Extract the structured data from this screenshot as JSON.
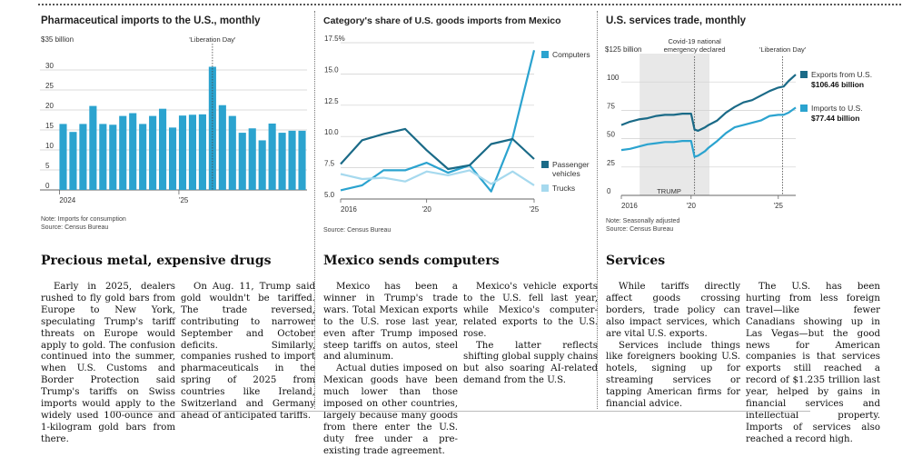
{
  "charts": {
    "pharma": {
      "title": "Pharmaceutical imports to the U.S., monthly",
      "note1": "Note: Imports for consumption",
      "note2": "Source: Census Bureau"
    },
    "mexico": {
      "title": "Category's share of U.S. goods imports from Mexico",
      "note1": "Source: Census Bureau"
    },
    "services": {
      "title": "U.S. services trade, monthly",
      "note1": "Note: Seasonally adjusted",
      "note2": "Source: Census Bureau"
    }
  },
  "chart_data": [
    {
      "type": "bar",
      "title": "Pharmaceutical imports to the U.S., monthly",
      "ylabel": "$35 billion",
      "ylim": [
        0,
        35
      ],
      "yticks": [
        0,
        5,
        10,
        15,
        20,
        25,
        30
      ],
      "ytick_labels": [
        "0",
        "5",
        "10",
        "15",
        "20",
        "25",
        "30"
      ],
      "x_tick_labels": [
        {
          "label": "2024",
          "index": 0
        },
        {
          "label": "'25",
          "index": 12
        }
      ],
      "annotation": {
        "label": "'Liberation Day'",
        "index": 15.5
      },
      "categories": [
        "Jan 2024",
        "Feb 2024",
        "Mar 2024",
        "Apr 2024",
        "May 2024",
        "Jun 2024",
        "Jul 2024",
        "Aug 2024",
        "Sep 2024",
        "Oct 2024",
        "Nov 2024",
        "Dec 2024",
        "Jan 2025",
        "Feb 2025",
        "Mar 2025",
        "Apr 2025",
        "May 2025",
        "Jun 2025",
        "Jul 2025",
        "Aug 2025",
        "Sep 2025",
        "Oct 2025",
        "Nov 2025",
        "Dec 2025",
        "Jan 2026"
      ],
      "values": [
        16.5,
        14.5,
        16.5,
        21,
        16.5,
        16.3,
        18.5,
        19.2,
        16.5,
        18.5,
        20.3,
        15.6,
        18.6,
        18.8,
        18.9,
        30.8,
        21.2,
        18.5,
        14.3,
        15.4,
        12.4,
        16.6,
        14.3,
        14.8,
        14.8
      ],
      "color": "#2ba3cf"
    },
    {
      "type": "line",
      "title": "Category's share of U.S. goods imports from Mexico",
      "ylabel": "17.5%",
      "ylim": [
        5.0,
        17.5
      ],
      "yticks": [
        5.0,
        7.5,
        10.0,
        12.5,
        15.0,
        17.5
      ],
      "ytick_labels": [
        "5.0",
        "7.5",
        "10.0",
        "12.5",
        "15.0",
        "17.5%"
      ],
      "x": [
        2016,
        2017,
        2018,
        2019,
        2020,
        2021,
        2022,
        2023,
        2024,
        2025
      ],
      "x_tick_labels": [
        {
          "label": "2016",
          "x": 2016
        },
        {
          "label": "'20",
          "x": 2020
        },
        {
          "label": "'25",
          "x": 2025
        }
      ],
      "series": [
        {
          "name": "Computers",
          "values": [
            5.7,
            6.1,
            7.3,
            7.3,
            7.9,
            7.1,
            7.7,
            5.6,
            9.9,
            16.9
          ],
          "color": "#2ba3cf"
        },
        {
          "name": "Passenger vehicles",
          "values": [
            7.8,
            9.7,
            10.2,
            10.6,
            8.9,
            7.4,
            7.7,
            9.4,
            9.8,
            8.2
          ],
          "color": "#1a6a87"
        },
        {
          "name": "Trucks",
          "values": [
            7.0,
            6.6,
            6.7,
            6.4,
            7.2,
            6.9,
            7.3,
            6.2,
            7.2,
            6.1
          ],
          "color": "#a6d9ee"
        }
      ],
      "legend_labels": [
        "Computers",
        "Passenger vehicles",
        "Trucks"
      ]
    },
    {
      "type": "line",
      "title": "U.S. services trade, monthly",
      "ylabel": "$125 billion",
      "ylim": [
        0,
        125
      ],
      "yticks": [
        0,
        25,
        50,
        75,
        100
      ],
      "ytick_labels": [
        "0",
        "25",
        "50",
        "75",
        "100"
      ],
      "xlim": [
        2016.0,
        2026.0
      ],
      "x_tick_labels": [
        {
          "label": "2016",
          "x": 2016
        },
        {
          "label": "'20",
          "x": 2020
        },
        {
          "label": "'25",
          "x": 2025
        }
      ],
      "shaded_period": {
        "label": "TRUMP",
        "from": 2017.05,
        "to": 2021.05
      },
      "annotations": [
        {
          "label": "Covid-19 national emergency declared",
          "x": 2020.2
        },
        {
          "label": "'Liberation Day'",
          "x": 2025.25
        }
      ],
      "series": [
        {
          "name": "Exports from U.S.",
          "value_label": "$106.46 billion",
          "color": "#1a6a87",
          "points": [
            [
              2016.0,
              62
            ],
            [
              2016.5,
              65
            ],
            [
              2017.0,
              67
            ],
            [
              2017.5,
              68
            ],
            [
              2018.0,
              70
            ],
            [
              2018.5,
              71
            ],
            [
              2019.0,
              71
            ],
            [
              2019.5,
              72
            ],
            [
              2020.0,
              72
            ],
            [
              2020.2,
              58
            ],
            [
              2020.4,
              57
            ],
            [
              2020.8,
              60
            ],
            [
              2021.0,
              62
            ],
            [
              2021.5,
              66
            ],
            [
              2022.0,
              73
            ],
            [
              2022.5,
              78
            ],
            [
              2023.0,
              82
            ],
            [
              2023.5,
              84
            ],
            [
              2024.0,
              88
            ],
            [
              2024.5,
              92
            ],
            [
              2025.0,
              95
            ],
            [
              2025.3,
              96
            ],
            [
              2025.6,
              101
            ],
            [
              2026.0,
              106.46
            ]
          ]
        },
        {
          "name": "Imports to U.S.",
          "value_label": "$77.44 billion",
          "color": "#2ba3cf",
          "points": [
            [
              2016.0,
              40
            ],
            [
              2016.5,
              41
            ],
            [
              2017.0,
              43
            ],
            [
              2017.5,
              45
            ],
            [
              2018.0,
              46
            ],
            [
              2018.5,
              47
            ],
            [
              2019.0,
              47
            ],
            [
              2019.5,
              48
            ],
            [
              2020.0,
              48
            ],
            [
              2020.2,
              34
            ],
            [
              2020.4,
              35
            ],
            [
              2020.8,
              39
            ],
            [
              2021.0,
              42
            ],
            [
              2021.5,
              48
            ],
            [
              2022.0,
              55
            ],
            [
              2022.5,
              60
            ],
            [
              2023.0,
              62
            ],
            [
              2023.5,
              64
            ],
            [
              2024.0,
              66
            ],
            [
              2024.5,
              70
            ],
            [
              2025.0,
              71
            ],
            [
              2025.3,
              71
            ],
            [
              2025.6,
              73
            ],
            [
              2026.0,
              77.44
            ]
          ]
        }
      ]
    }
  ],
  "articles": {
    "pharma": {
      "headline": "Precious metal, expensive drugs",
      "p1": "Early in 2025, dealers rushed to fly gold bars from Europe to New York, speculating Trump's tariff threats on Europe would apply to gold. The confusion continued into the summer, when U.S. Customs and Border Protection said Trump's tariffs on Swiss imports would apply to the widely used 100-ounce and 1-kilogram gold bars from there.",
      "p2": "On Aug. 11, Trump said gold wouldn't be tariffed. The trade reversed, contributing to narrower September and October deficits. Similarly, companies rushed to import pharmaceuticals in the spring of 2025 from countries like Ireland, Switzerland and Germany ahead of anticipated tariffs."
    },
    "mexico": {
      "headline": "Mexico sends computers",
      "p1": "Mexico has been a winner in Trump's trade wars. Total Mexican exports to the U.S. rose last year, even after Trump imposed steep tariffs on autos, steel and aluminum.",
      "p2": "Actual duties imposed on Mexican goods have been much lower than those imposed on other countries, largely because many goods from there enter the U.S. duty free under a pre-existing trade agreement.",
      "p3": "Mexico's vehicle exports to the U.S. fell last year, while Mexico's computer-related exports to the U.S. rose.",
      "p4": "The latter reflects shifting global supply chains but also soaring AI-related demand from the U.S."
    },
    "services": {
      "headline": "Services",
      "p1": "While tariffs directly affect goods crossing borders, trade policy can also impact services, which are vital U.S. exports.",
      "p2": "Services include things like foreigners booking U.S. hotels, signing up for streaming services or tapping American firms for financial advice.",
      "p3": "The U.S. has been hurting from less foreign travel—like fewer Canadians showing up in Las Vegas—but the good news for American companies is that services exports still reached a record of $1.235 trillion last year, helped by gains in financial services and intellectual property. Imports of services also reached a record high."
    }
  }
}
